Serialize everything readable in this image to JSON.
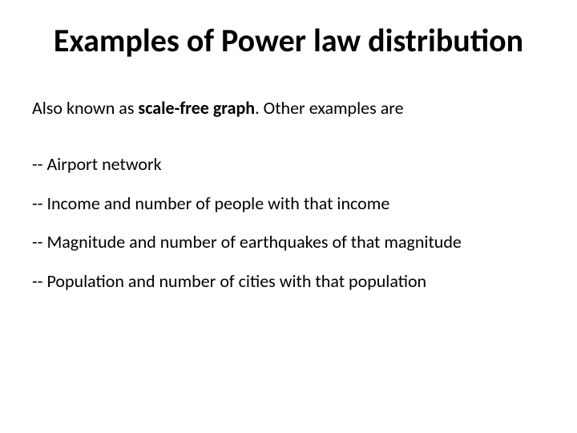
{
  "slide": {
    "title": "Examples of Power law distribution",
    "intro_prefix": "Also known as ",
    "intro_bold": "scale-free graph",
    "intro_suffix": ". Other examples are",
    "bullets": [
      "-- Airport network",
      "-- Income and number of people with that income",
      "-- Magnitude and number of earthquakes of that magnitude",
      "-- Population and number of cities with that population"
    ]
  },
  "style": {
    "background_color": "#ffffff",
    "text_color": "#000000",
    "title_fontsize": 40,
    "title_fontweight": 700,
    "body_fontsize": 22,
    "font_family": "Calibri"
  }
}
